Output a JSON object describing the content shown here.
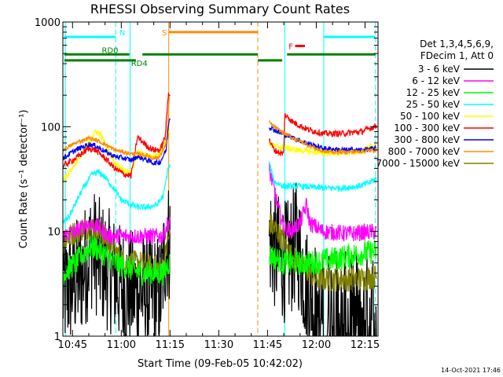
{
  "chart_data": {
    "type": "line",
    "title": "RHESSI Observing Summary Count Rates",
    "xlabel": "Start Time (09-Feb-05 10:42:02)",
    "ylabel": "Count Rate (s⁻¹ detector⁻¹)",
    "y_scale": "log",
    "ylim": [
      1,
      1000
    ],
    "xlim": [
      42.03,
      139.0
    ],
    "x_units": "minutes after 10:00 UT",
    "y_ticks": [
      {
        "value": 1,
        "label": "1"
      },
      {
        "value": 10,
        "label": "10"
      },
      {
        "value": 100,
        "label": "100"
      },
      {
        "value": 1000,
        "label": "1000"
      }
    ],
    "x_ticks": [
      {
        "value": 45,
        "label": "10:45"
      },
      {
        "value": 60,
        "label": "11:00"
      },
      {
        "value": 75,
        "label": "11:15"
      },
      {
        "value": 90,
        "label": "11:30"
      },
      {
        "value": 105,
        "label": "11:45"
      },
      {
        "value": 120,
        "label": "12:00"
      },
      {
        "value": 135,
        "label": "12:15"
      }
    ],
    "legend": {
      "placement": "right",
      "header": [
        "Det 1,3,4,5,6,9,",
        "FDecim 1, Att 0"
      ],
      "entries": [
        {
          "label": "3 - 6 keV",
          "color": "#000000"
        },
        {
          "label": "6 - 12 keV",
          "color": "#ff00ff"
        },
        {
          "label": "12 - 25 keV",
          "color": "#00ff00"
        },
        {
          "label": "25 - 50 keV",
          "color": "#00ffff"
        },
        {
          "label": "50 - 100 keV",
          "color": "#ffff00"
        },
        {
          "label": "100 - 300 keV",
          "color": "#ff0000"
        },
        {
          "label": "300 - 800 keV",
          "color": "#0000ff"
        },
        {
          "label": "800 - 7000 keV",
          "color": "#ff8c00"
        },
        {
          "label": "7000 - 15000 keV",
          "color": "#808000"
        }
      ]
    },
    "gap": [
      75,
      105
    ],
    "series": [
      {
        "name": "3 - 6 keV",
        "color": "#000000",
        "noise": 0.6,
        "points": [
          [
            42,
            2.5
          ],
          [
            48,
            4
          ],
          [
            51,
            7
          ],
          [
            54,
            5
          ],
          [
            57,
            4
          ],
          [
            60,
            3
          ],
          [
            63,
            2.7
          ],
          [
            66,
            2.6
          ],
          [
            70,
            2.5
          ],
          [
            72,
            2.4
          ],
          [
            73.8,
            8
          ],
          [
            105.5,
            9
          ],
          [
            108,
            6
          ],
          [
            111,
            5
          ],
          [
            114,
            8
          ],
          [
            117,
            3
          ],
          [
            120,
            2
          ],
          [
            121,
            1.5
          ],
          [
            124,
            1.8
          ],
          [
            130,
            1.6
          ],
          [
            136,
            1.8
          ],
          [
            138.5,
            1.8
          ]
        ]
      },
      {
        "name": "6 - 12 keV",
        "color": "#ff00ff",
        "noise": 0.08,
        "points": [
          [
            42,
            9
          ],
          [
            46,
            10
          ],
          [
            50,
            12
          ],
          [
            53,
            11
          ],
          [
            56,
            9
          ],
          [
            59,
            9
          ],
          [
            62,
            9
          ],
          [
            66,
            9
          ],
          [
            70,
            9
          ],
          [
            73,
            9
          ],
          [
            74.3,
            12
          ],
          [
            105.5,
            38
          ],
          [
            106.5,
            30
          ],
          [
            108,
            18
          ],
          [
            110,
            11
          ],
          [
            112,
            10
          ],
          [
            115,
            12
          ],
          [
            117,
            18
          ],
          [
            118,
            12
          ],
          [
            122,
            10
          ],
          [
            130,
            9.5
          ],
          [
            138.5,
            10
          ]
        ]
      },
      {
        "name": "12 - 25 keV",
        "color": "#00ff00",
        "noise": 0.12,
        "points": [
          [
            42,
            4
          ],
          [
            46,
            5
          ],
          [
            50,
            7
          ],
          [
            52,
            7
          ],
          [
            55,
            6
          ],
          [
            58,
            5
          ],
          [
            62,
            4.5
          ],
          [
            66,
            4
          ],
          [
            70,
            4
          ],
          [
            73,
            4
          ],
          [
            74.5,
            5
          ],
          [
            105.5,
            6
          ],
          [
            110,
            5
          ],
          [
            118,
            5
          ],
          [
            126,
            5.5
          ],
          [
            132,
            6
          ],
          [
            138.5,
            6.5
          ]
        ]
      },
      {
        "name": "25 - 50 keV",
        "color": "#00ffff",
        "noise": 0.03,
        "points": [
          [
            42,
            12
          ],
          [
            44,
            14
          ],
          [
            48,
            25
          ],
          [
            51,
            35
          ],
          [
            53,
            37
          ],
          [
            55,
            33
          ],
          [
            58,
            25
          ],
          [
            60,
            20
          ],
          [
            63,
            18
          ],
          [
            65,
            17
          ],
          [
            68,
            17
          ],
          [
            71,
            18
          ],
          [
            73,
            22
          ],
          [
            74.5,
            42
          ],
          [
            105.5,
            45
          ],
          [
            107,
            30
          ],
          [
            110,
            27
          ],
          [
            115,
            27
          ],
          [
            122,
            26
          ],
          [
            128,
            26
          ],
          [
            133,
            27
          ],
          [
            136,
            29
          ],
          [
            138.5,
            32
          ]
        ]
      },
      {
        "name": "50 - 100 keV",
        "color": "#ffff00",
        "noise": 0.03,
        "points": [
          [
            42,
            30
          ],
          [
            46,
            45
          ],
          [
            50,
            70
          ],
          [
            52,
            90
          ],
          [
            53.5,
            85
          ],
          [
            56,
            60
          ],
          [
            58,
            45
          ],
          [
            61,
            38
          ],
          [
            63,
            36
          ],
          [
            65,
            57
          ],
          [
            68,
            52
          ],
          [
            70,
            52
          ],
          [
            72,
            56
          ],
          [
            74.5,
            90
          ],
          [
            105.5,
            70
          ],
          [
            107,
            65
          ],
          [
            110,
            63
          ],
          [
            114,
            60
          ],
          [
            122,
            56
          ],
          [
            128,
            56
          ],
          [
            133,
            58
          ],
          [
            136,
            62
          ],
          [
            138.5,
            68
          ]
        ]
      },
      {
        "name": "100 - 300 keV",
        "color": "#ff0000",
        "noise": 0.03,
        "points": [
          [
            42,
            42
          ],
          [
            46,
            50
          ],
          [
            50,
            62
          ],
          [
            52,
            60
          ],
          [
            55,
            50
          ],
          [
            58,
            40
          ],
          [
            61,
            35
          ],
          [
            63,
            34
          ],
          [
            65,
            80
          ],
          [
            68,
            65
          ],
          [
            70,
            60
          ],
          [
            72,
            60
          ],
          [
            73.5,
            80
          ],
          [
            74.5,
            210
          ],
          [
            105.5,
            75
          ],
          [
            107,
            60
          ],
          [
            109,
            56
          ],
          [
            110,
            55
          ],
          [
            110.3,
            130
          ],
          [
            113,
            110
          ],
          [
            117,
            95
          ],
          [
            122,
            86
          ],
          [
            128,
            86
          ],
          [
            134,
            90
          ],
          [
            138.5,
            102
          ]
        ]
      },
      {
        "name": "300 - 800 keV",
        "color": "#0000ff",
        "noise": 0.025,
        "points": [
          [
            42,
            50
          ],
          [
            46,
            60
          ],
          [
            50,
            68
          ],
          [
            52,
            66
          ],
          [
            55,
            58
          ],
          [
            58,
            52
          ],
          [
            61,
            50
          ],
          [
            63,
            48
          ],
          [
            65,
            52
          ],
          [
            68,
            48
          ],
          [
            70,
            45
          ],
          [
            72,
            46
          ],
          [
            73.8,
            60
          ],
          [
            74.7,
            120
          ],
          [
            105.5,
            100
          ],
          [
            108,
            90
          ],
          [
            112,
            80
          ],
          [
            117,
            70
          ],
          [
            122,
            62
          ],
          [
            128,
            60
          ],
          [
            134,
            60
          ],
          [
            138.5,
            62
          ]
        ]
      },
      {
        "name": "800 - 7000 keV",
        "color": "#ff8c00",
        "noise": 0.02,
        "points": [
          [
            42,
            60
          ],
          [
            46,
            70
          ],
          [
            50,
            78
          ],
          [
            52,
            75
          ],
          [
            55,
            68
          ],
          [
            58,
            60
          ],
          [
            61,
            57
          ],
          [
            63,
            55
          ],
          [
            65,
            55
          ],
          [
            68,
            53
          ],
          [
            70,
            50
          ],
          [
            72,
            52
          ],
          [
            73.8,
            70
          ],
          [
            74.8,
            190
          ],
          [
            105.5,
            110
          ],
          [
            108,
            95
          ],
          [
            112,
            80
          ],
          [
            117,
            68
          ],
          [
            122,
            58
          ],
          [
            128,
            57
          ],
          [
            134,
            58
          ],
          [
            138.5,
            60
          ]
        ]
      },
      {
        "name": "7000 - 15000 keV",
        "color": "#808000",
        "noise": 0.12,
        "points": [
          [
            42,
            8
          ],
          [
            46,
            10
          ],
          [
            50,
            11
          ],
          [
            53,
            10
          ],
          [
            56,
            8
          ],
          [
            59,
            6
          ],
          [
            62,
            5
          ],
          [
            66,
            5
          ],
          [
            70,
            4.5
          ],
          [
            73,
            4.5
          ],
          [
            74.6,
            9
          ],
          [
            105.5,
            12
          ],
          [
            108,
            10
          ],
          [
            110,
            8
          ],
          [
            112,
            6
          ],
          [
            116,
            4.5
          ],
          [
            120,
            3.5
          ],
          [
            126,
            3.5
          ],
          [
            132,
            3.5
          ],
          [
            138.5,
            3.7
          ]
        ]
      }
    ],
    "flag_lines": [
      {
        "label": "N",
        "color": "#00ffff",
        "segments": [
          [
            42.5,
            58.3
          ],
          [
            122.3,
            138.2
          ]
        ],
        "level": 720
      },
      {
        "label": "S",
        "color": "#ff8c00",
        "segments": [
          [
            74.6,
            102.0
          ]
        ],
        "level": 800
      },
      {
        "label": "F",
        "color": "#ff0000",
        "segments": [
          [
            113.5,
            116.5
          ]
        ],
        "level": 590
      },
      {
        "label": "RD0",
        "color": "#008000",
        "segments": [
          [
            42.5,
            62.5
          ],
          [
            66.5,
            102.0
          ],
          [
            111.0,
            138.2
          ]
        ],
        "level": 490
      },
      {
        "label": "RD4",
        "color": "#008000",
        "segments": [
          [
            42.5,
            64.5
          ],
          [
            102.0,
            109.5
          ]
        ],
        "level": 430
      }
    ],
    "vertical_markers": [
      {
        "x": 42.8,
        "color": "#00ffff",
        "style": "solid"
      },
      {
        "x": 58.3,
        "color": "#00ffff",
        "style": "dashed"
      },
      {
        "x": 62.7,
        "color": "#00ffff",
        "style": "solid"
      },
      {
        "x": 74.6,
        "color": "#ff8c00",
        "style": "solid"
      },
      {
        "x": 102.0,
        "color": "#ff8c00",
        "style": "dashed"
      },
      {
        "x": 110.3,
        "color": "#00ffff",
        "style": "solid"
      },
      {
        "x": 122.3,
        "color": "#00ffff",
        "style": "solid"
      },
      {
        "x": 138.2,
        "color": "#00ffff",
        "style": "dashed"
      }
    ],
    "timestamp": "14-Oct-2021 17:46"
  }
}
